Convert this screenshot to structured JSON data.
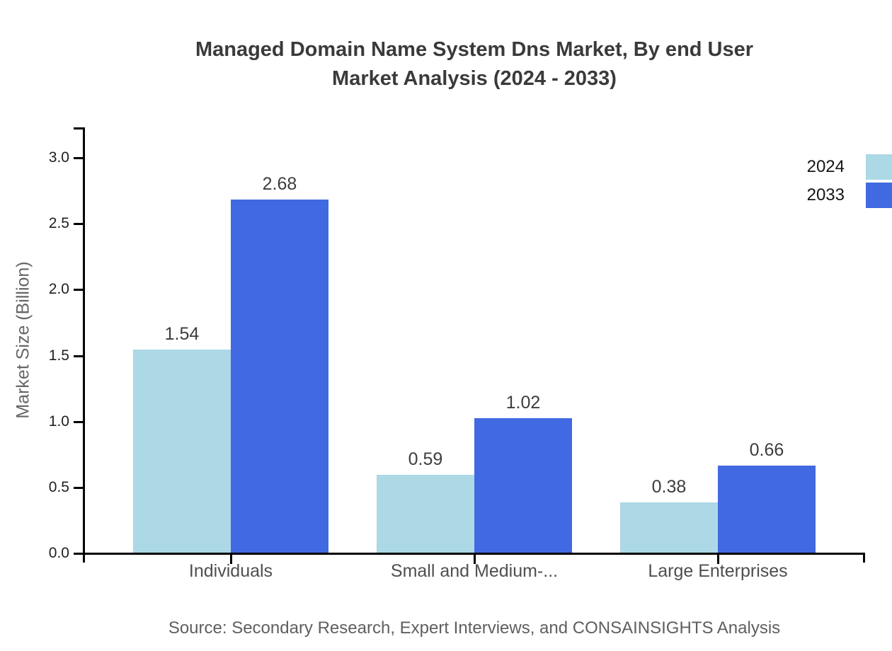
{
  "title": {
    "line1": "Managed Domain Name System Dns Market, By end User",
    "line2": "Market Analysis (2024 - 2033)"
  },
  "y_axis": {
    "label": "Market Size (Billion)",
    "tick_labels": [
      "0.0",
      "0.5",
      "1.0",
      "1.5",
      "2.0",
      "2.5",
      "3.0"
    ]
  },
  "legend": {
    "items": [
      {
        "label": "2024",
        "color": "#ADD8E6"
      },
      {
        "label": "2033",
        "color": "#4169E1"
      }
    ]
  },
  "source": "Source: Secondary Research, Expert Interviews, and CONSAINSIGHTS Analysis",
  "chart_data": {
    "type": "bar",
    "title": "Managed Domain Name System Dns Market, By end User Market Analysis (2024 - 2033)",
    "categories": [
      "Individuals",
      "Small and Medium-...",
      "Large Enterprises"
    ],
    "series": [
      {
        "name": "2024",
        "color": "#ADD8E6",
        "values": [
          1.54,
          0.59,
          0.38
        ]
      },
      {
        "name": "2033",
        "color": "#4169E1",
        "values": [
          2.68,
          1.02,
          0.66
        ]
      }
    ],
    "xlabel": "",
    "ylabel": "Market Size (Billion)",
    "ylim": [
      0,
      3.2
    ],
    "yticks": [
      0.0,
      0.5,
      1.0,
      1.5,
      2.0,
      2.5,
      3.0
    ],
    "grid": false,
    "legend_position": "top-right",
    "value_labels": true
  }
}
